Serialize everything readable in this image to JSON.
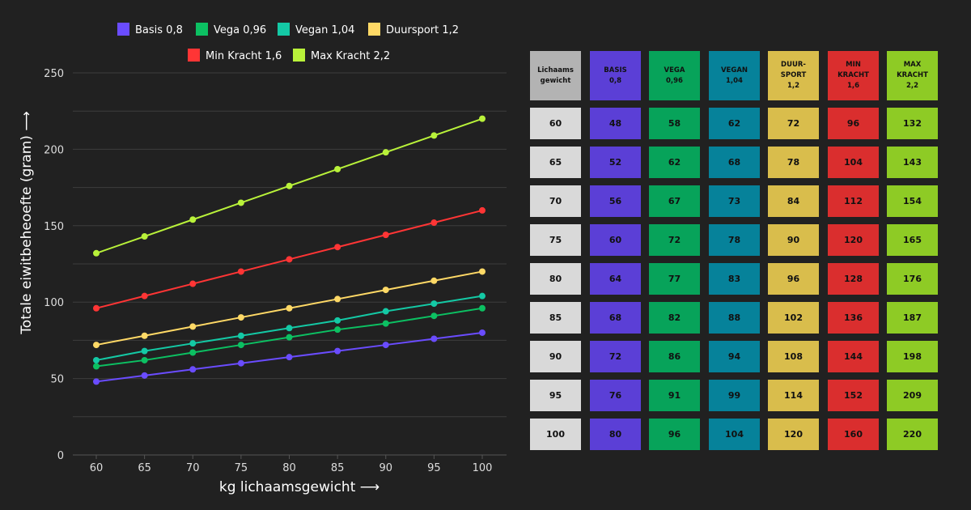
{
  "chart_data": {
    "type": "line",
    "x": [
      60,
      65,
      70,
      75,
      80,
      85,
      90,
      95,
      100
    ],
    "xlabel": "kg lichaamsgewicht",
    "ylabel": "Totale eiwitbeheoefte (gram)",
    "xlim": [
      60,
      100
    ],
    "ylim": [
      0,
      250
    ],
    "yticks": [
      0,
      50,
      100,
      150,
      200,
      250
    ],
    "grid": true,
    "legend": "top",
    "series": [
      {
        "name": "Basis 0,8",
        "color": "#6a4cff",
        "values": [
          48,
          52,
          56,
          60,
          64,
          68,
          72,
          76,
          80
        ]
      },
      {
        "name": "Vega 0,96",
        "color": "#0cc062",
        "values": [
          58,
          62,
          67,
          72,
          77,
          82,
          86,
          91,
          96
        ]
      },
      {
        "name": "Vegan 1,04",
        "color": "#14c9a5",
        "values": [
          62,
          68,
          73,
          78,
          83,
          88,
          94,
          99,
          104
        ]
      },
      {
        "name": "Duursport 1,2",
        "color": "#ffd966",
        "values": [
          72,
          78,
          84,
          90,
          96,
          102,
          108,
          114,
          120
        ]
      },
      {
        "name": "Min Kracht 1,6",
        "color": "#ff3535",
        "values": [
          96,
          104,
          112,
          120,
          128,
          136,
          144,
          152,
          160
        ]
      },
      {
        "name": "Max Kracht 2,2",
        "color": "#b9f23a",
        "values": [
          132,
          143,
          154,
          165,
          176,
          187,
          198,
          209,
          220
        ]
      }
    ]
  },
  "table": {
    "headers": [
      {
        "label": "Lichaams\ngewicht",
        "color": "#b3b3b3"
      },
      {
        "label": "BASIS\n0,8",
        "color": "#5b3fd6"
      },
      {
        "label": "VEGA\n0,96",
        "color": "#07a35a"
      },
      {
        "label": "VEGAN\n1,04",
        "color": "#06829a"
      },
      {
        "label": "DUUR-\nSPORT\n1,2",
        "color": "#d9bd4c"
      },
      {
        "label": "MIN\nKRACHT\n1,6",
        "color": "#da2e2e"
      },
      {
        "label": "MAX\nKRACHT\n2,2",
        "color": "#8ecb25"
      }
    ],
    "first_col_color": "#d9d9d9",
    "rows": [
      [
        "60",
        "48",
        "58",
        "62",
        "72",
        "96",
        "132"
      ],
      [
        "65",
        "52",
        "62",
        "68",
        "78",
        "104",
        "143"
      ],
      [
        "70",
        "56",
        "67",
        "73",
        "84",
        "112",
        "154"
      ],
      [
        "75",
        "60",
        "72",
        "78",
        "90",
        "120",
        "165"
      ],
      [
        "80",
        "64",
        "77",
        "83",
        "96",
        "128",
        "176"
      ],
      [
        "85",
        "68",
        "82",
        "88",
        "102",
        "136",
        "187"
      ],
      [
        "90",
        "72",
        "86",
        "94",
        "108",
        "144",
        "198"
      ],
      [
        "95",
        "76",
        "91",
        "99",
        "114",
        "152",
        "209"
      ],
      [
        "100",
        "80",
        "96",
        "104",
        "120",
        "160",
        "220"
      ]
    ]
  }
}
